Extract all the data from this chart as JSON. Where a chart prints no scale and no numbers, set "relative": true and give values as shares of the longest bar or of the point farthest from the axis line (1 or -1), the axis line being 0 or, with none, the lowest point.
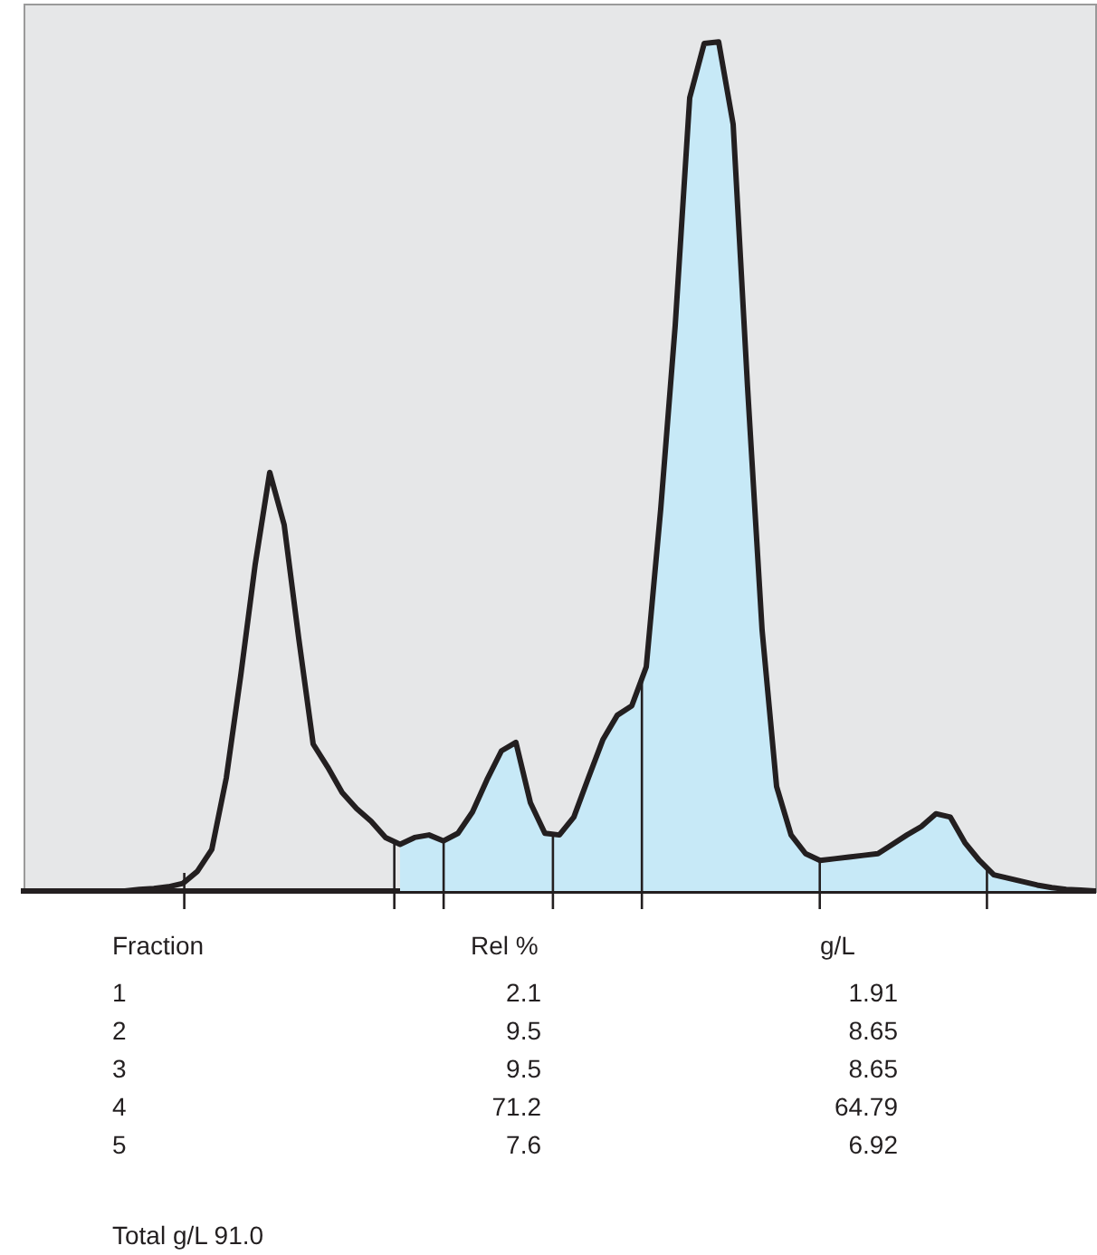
{
  "chart_data": {
    "type": "line",
    "relative": true,
    "tick_labels": false,
    "categories": [
      null,
      null,
      null,
      null,
      null,
      null,
      null,
      null,
      null,
      null,
      null,
      null,
      null,
      null,
      null,
      null,
      null,
      null,
      null,
      null,
      null,
      null,
      null,
      null,
      null,
      null,
      null,
      null,
      null,
      null,
      null,
      null,
      null,
      null,
      null,
      null,
      null,
      null,
      null,
      null,
      null,
      null,
      null,
      null,
      null,
      null,
      null,
      null,
      null,
      null,
      null,
      null,
      null,
      null,
      null,
      null,
      null,
      null,
      null,
      null,
      null,
      null,
      null,
      null,
      null,
      null,
      null,
      null,
      null,
      null,
      null,
      null,
      null,
      null,
      null
    ],
    "series": [
      {
        "type": "area",
        "color": "#c7e9f7",
        "values": [
          null,
          null,
          null,
          null,
          null,
          null,
          null,
          null,
          null,
          null,
          null,
          null,
          null,
          null,
          null,
          null,
          null,
          null,
          null,
          null,
          null,
          null,
          null,
          null,
          null,
          null,
          0.055,
          0.063,
          0.066,
          0.059,
          0.068,
          0.093,
          0.131,
          0.165,
          0.175,
          0.104,
          0.068,
          0.066,
          0.087,
          0.133,
          0.178,
          0.207,
          0.218,
          0.264,
          0.45,
          0.666,
          0.934,
          0.998,
          1,
          0.903,
          0.592,
          0.307,
          0.123,
          0.066,
          0.044,
          0.036,
          0.038,
          0.04,
          0.042,
          0.044,
          0.055,
          0.066,
          0.076,
          0.091,
          0.087,
          0.057,
          0.036,
          0.019,
          0.015,
          0.011,
          0.007,
          0.004,
          0.002,
          0.001,
          0
        ]
      },
      {
        "type": "line",
        "color": "#231f20",
        "values": [
          null,
          null,
          null,
          null,
          null,
          null,
          null,
          0,
          0.002,
          0.003,
          0.005,
          0.009,
          0.023,
          0.049,
          0.133,
          0.254,
          0.385,
          0.493,
          0.431,
          0.298,
          0.173,
          0.146,
          0.116,
          0.097,
          0.082,
          0.063,
          0.055,
          0.063,
          0.066,
          0.059,
          0.068,
          0.093,
          0.131,
          0.165,
          0.175,
          0.104,
          0.068,
          0.066,
          0.087,
          0.133,
          0.178,
          0.207,
          0.218,
          0.264,
          0.45,
          0.666,
          0.934,
          0.998,
          1,
          0.903,
          0.592,
          0.307,
          0.123,
          0.066,
          0.044,
          0.036,
          0.038,
          0.04,
          0.042,
          0.044,
          0.055,
          0.066,
          0.076,
          0.091,
          0.087,
          0.057,
          0.036,
          0.019,
          0.015,
          0.011,
          0.007,
          0.004,
          0.002,
          0.001,
          0
        ]
      }
    ],
    "annotations": [
      "Fraction",
      "Rel %",
      "g/L",
      "1",
      "2.1",
      "1.91",
      "2",
      "9.5",
      "8.65",
      "3",
      "9.5",
      "8.65",
      "4",
      "71.2",
      "64.79",
      "5",
      "7.6",
      "6.92",
      "Total g/L 91.0"
    ]
  }
}
